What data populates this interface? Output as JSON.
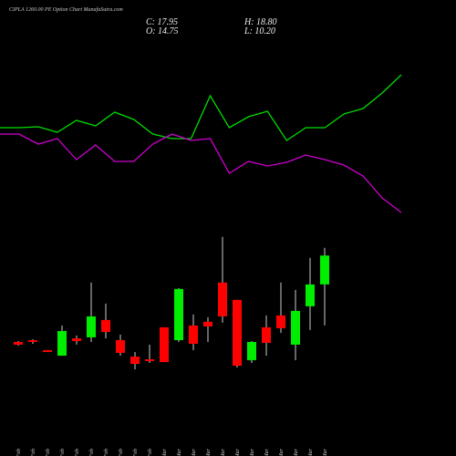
{
  "chart_data": {
    "type": "candlestick",
    "title": "CIPLA 1260.00 PE Option Chart MunafaSutra.com",
    "header": [
      "C: 17.95",
      "O: 14.75",
      "H: 18.80",
      "L: 10.20"
    ],
    "categories": [
      "16 Feb",
      "17 Feb",
      "18 Feb",
      "19 Feb",
      "20 Feb",
      "23 Feb",
      "24 Feb",
      "25 Feb",
      "26 Feb",
      "27 Feb",
      "02 Mar",
      "04 Mar",
      "05 Mar",
      "06 Mar",
      "09 Mar",
      "10 Mar",
      "11 Mar",
      "12 Mar",
      "13 Mar",
      "16 Mar",
      "17 Mar",
      "18 Mar"
    ],
    "open": [
      8.38,
      8.58,
      7.47,
      6.86,
      8.78,
      8.89,
      10.81,
      8.58,
      6.76,
      6.46,
      10.0,
      8.58,
      10.2,
      10.61,
      14.96,
      13.04,
      6.36,
      10.0,
      11.32,
      8.08,
      12.33,
      14.75
    ],
    "high": [
      8.48,
      8.68,
      7.47,
      10.2,
      9.09,
      14.96,
      12.63,
      9.19,
      7.27,
      8.08,
      10.0,
      14.35,
      11.42,
      11.11,
      20.02,
      13.04,
      8.48,
      11.32,
      14.96,
      14.15,
      17.69,
      18.8
    ],
    "low": [
      7.97,
      8.17,
      7.27,
      6.86,
      8.08,
      8.38,
      8.78,
      6.86,
      5.34,
      6.05,
      6.15,
      8.38,
      7.47,
      8.38,
      10.51,
      5.55,
      6.05,
      6.86,
      9.39,
      6.36,
      9.7,
      10.2
    ],
    "close": [
      8.08,
      8.38,
      7.27,
      9.59,
      8.48,
      11.21,
      9.49,
      7.17,
      5.95,
      6.26,
      6.15,
      14.25,
      8.18,
      10.1,
      11.21,
      5.75,
      8.38,
      8.28,
      9.9,
      11.82,
      14.75,
      17.95
    ],
    "up_color": "#00ee00",
    "down_color": "#ff0000",
    "ylim": [
      0.8,
      21.0
    ],
    "lines": {
      "ylim": [
        0,
        100
      ],
      "series": [
        {
          "color": "#00dd00",
          "values": [
            55,
            55,
            55.5,
            52.5,
            59,
            56,
            63.5,
            59.5,
            51.5,
            49,
            49,
            72.5,
            55,
            61,
            64,
            48,
            55,
            55,
            62.5,
            65.5,
            74,
            84
          ]
        },
        {
          "color": "#cc00cc",
          "values": [
            51.5,
            51.5,
            46,
            49,
            37.5,
            45.5,
            36.5,
            36.5,
            46,
            51.5,
            48,
            49,
            30,
            36.5,
            34,
            36,
            40,
            37.5,
            34.5,
            28.5,
            16.5,
            8.5
          ]
        }
      ]
    }
  }
}
